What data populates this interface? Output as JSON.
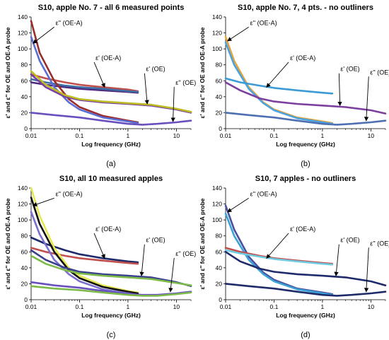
{
  "figure": {
    "shared": {
      "ylabel": "ε' and ε'' for OE and OE-A probe",
      "xlabel": "Log frequency (GHz)",
      "xticks": [
        "0.01",
        "0.1",
        "1",
        "10"
      ],
      "yticks": [
        "0",
        "20",
        "40",
        "60",
        "80",
        "100",
        "120",
        "140"
      ]
    }
  },
  "chart_data": [
    {
      "type": "line",
      "panel": "a",
      "caption": "(a)",
      "title": "S10, apple No. 7 - all 6 measured points",
      "xlabel": "Log frequency (GHz)",
      "ylabel": "ε' and ε'' for OE and OE-A probe",
      "xscale": "log",
      "xlim": [
        0.01,
        20
      ],
      "ylim": [
        0,
        140
      ],
      "grid": false,
      "annotations": [
        {
          "text": "ε'' (OE-A)",
          "x": 0.03,
          "y": 130,
          "target_x": 0.011,
          "target_y": 107
        },
        {
          "text": "ε' (OE-A)",
          "x": 0.2,
          "y": 86,
          "target_x": 0.33,
          "target_y": 52
        },
        {
          "text": "ε' (OE)",
          "x": 2.2,
          "y": 72,
          "target_x": 2.5,
          "target_y": 31
        },
        {
          "text": "ε'' (OE)",
          "x": 9.0,
          "y": 55,
          "target_x": 8.5,
          "target_y": 9
        }
      ],
      "series": [
        {
          "color": "#4f2a7e",
          "x": [
            0.01,
            0.02,
            0.05,
            0.1,
            0.3,
            1,
            1.6
          ],
          "y": [
            58,
            55,
            52,
            50,
            48,
            46,
            45
          ]
        },
        {
          "color": "#c0504d",
          "x": [
            0.01,
            0.02,
            0.05,
            0.1,
            0.3,
            1,
            1.6
          ],
          "y": [
            68,
            63,
            58,
            55,
            52,
            49,
            47
          ]
        },
        {
          "color": "#3a6ea5",
          "x": [
            0.01,
            0.02,
            0.05,
            0.1,
            0.3,
            1,
            1.6
          ],
          "y": [
            62,
            58,
            54,
            52,
            50,
            47,
            46
          ]
        },
        {
          "color": "#9b2c2c",
          "x": [
            0.01,
            0.015,
            0.03,
            0.06,
            0.1,
            0.3,
            1,
            1.6
          ],
          "y": [
            135,
            95,
            60,
            37,
            27,
            16,
            10,
            8
          ]
        },
        {
          "color": "#5a6fd6",
          "x": [
            0.01,
            0.015,
            0.03,
            0.06,
            0.1,
            0.3,
            1,
            1.6
          ],
          "y": [
            115,
            85,
            52,
            33,
            24,
            14,
            9,
            7
          ]
        },
        {
          "color": "#7b3fa0",
          "x": [
            0.01,
            0.02,
            0.05,
            0.1,
            0.3,
            1,
            3,
            10,
            20
          ],
          "y": [
            68,
            52,
            40,
            36,
            33,
            31,
            29,
            24,
            20
          ]
        },
        {
          "color": "#bcbd22",
          "x": [
            0.01,
            0.02,
            0.05,
            0.1,
            0.3,
            1,
            3,
            10,
            20
          ],
          "y": [
            72,
            55,
            42,
            37,
            34,
            32,
            30,
            25,
            21
          ]
        },
        {
          "color": "#6a4fbf",
          "x": [
            0.01,
            0.03,
            0.1,
            0.3,
            1,
            2,
            4,
            10,
            20
          ],
          "y": [
            20,
            17,
            14,
            10,
            6,
            5,
            6,
            8,
            10
          ]
        }
      ]
    },
    {
      "type": "line",
      "panel": "b",
      "caption": "(b)",
      "title": "S10, apple No. 7, 4 pts. - no outliners",
      "xlabel": "Log frequency (GHz)",
      "ylabel": "ε' and ε'' for OE and OE-A probe",
      "xscale": "log",
      "xlim": [
        0.01,
        20
      ],
      "ylim": [
        0,
        140
      ],
      "grid": false,
      "annotations": [
        {
          "text": "ε'' (OE-A)",
          "x": 0.03,
          "y": 130,
          "target_x": 0.011,
          "target_y": 110
        },
        {
          "text": "ε' (OE-A)",
          "x": 0.2,
          "y": 86,
          "target_x": 0.07,
          "target_y": 52
        },
        {
          "text": "ε' (OE)",
          "x": 2.2,
          "y": 72,
          "target_x": 2.3,
          "target_y": 29
        },
        {
          "text": "ε'' (OE)",
          "x": 9.0,
          "y": 68,
          "target_x": 8.0,
          "target_y": 10
        }
      ],
      "series": [
        {
          "color": "#e8a33a",
          "x": [
            0.01,
            0.015,
            0.03,
            0.06,
            0.1,
            0.3,
            1,
            1.6
          ],
          "y": [
            115,
            85,
            52,
            33,
            24,
            14,
            9,
            7
          ]
        },
        {
          "color": "#4aa3df",
          "x": [
            0.01,
            0.015,
            0.03,
            0.06,
            0.1,
            0.3,
            1,
            1.6
          ],
          "y": [
            108,
            80,
            50,
            32,
            23,
            13,
            8,
            6
          ]
        },
        {
          "color": "#3a9bd6",
          "x": [
            0.01,
            0.02,
            0.05,
            0.1,
            0.3,
            1,
            1.6
          ],
          "y": [
            63,
            58,
            54,
            51,
            48,
            45,
            44
          ]
        },
        {
          "color": "#7b3fa0",
          "x": [
            0.01,
            0.02,
            0.05,
            0.1,
            0.3,
            1,
            3,
            10,
            20
          ],
          "y": [
            58,
            48,
            38,
            34,
            31,
            29,
            27,
            23,
            19
          ]
        },
        {
          "color": "#4f6fb3",
          "x": [
            0.01,
            0.03,
            0.1,
            0.3,
            1,
            2,
            4,
            10,
            20
          ],
          "y": [
            20,
            17,
            14,
            10,
            6,
            5,
            6,
            8,
            10
          ]
        }
      ]
    },
    {
      "type": "line",
      "panel": "c",
      "caption": "(c)",
      "title": "S10, all 10 measured apples",
      "xlabel": "Log frequency (GHz)",
      "ylabel": "ε' and ε'' for OE and OE-A probe",
      "xscale": "log",
      "xlim": [
        0.01,
        20
      ],
      "ylim": [
        0,
        140
      ],
      "grid": false,
      "annotations": [
        {
          "text": "ε'' (OE-A)",
          "x": 0.03,
          "y": 130,
          "target_x": 0.011,
          "target_y": 118
        },
        {
          "text": "ε' (OE-A)",
          "x": 0.2,
          "y": 86,
          "target_x": 0.33,
          "target_y": 52
        },
        {
          "text": "ε' (OE)",
          "x": 2.2,
          "y": 72,
          "target_x": 1.9,
          "target_y": 30
        },
        {
          "text": "ε'' (OE)",
          "x": 9.0,
          "y": 55,
          "target_x": 7.5,
          "target_y": 10
        }
      ],
      "series": [
        {
          "color": "#1f2a6b",
          "x": [
            0.01,
            0.02,
            0.05,
            0.1,
            0.3,
            1,
            1.6
          ],
          "y": [
            78,
            70,
            62,
            57,
            52,
            48,
            47
          ]
        },
        {
          "color": "#c0504d",
          "x": [
            0.01,
            0.02,
            0.05,
            0.1,
            0.3,
            1,
            1.6
          ],
          "y": [
            65,
            60,
            55,
            52,
            49,
            46,
            45
          ]
        },
        {
          "color": "#e6e84f",
          "x": [
            0.01,
            0.015,
            0.03,
            0.06,
            0.1,
            0.3,
            1,
            1.6
          ],
          "y": [
            140,
            105,
            65,
            40,
            30,
            18,
            11,
            9
          ]
        },
        {
          "color": "#111111",
          "x": [
            0.01,
            0.015,
            0.03,
            0.06,
            0.1,
            0.3,
            1,
            1.6
          ],
          "y": [
            128,
            95,
            60,
            37,
            27,
            16,
            10,
            8
          ]
        },
        {
          "color": "#7b6fd0",
          "x": [
            0.01,
            0.015,
            0.03,
            0.06,
            0.1,
            0.3,
            1,
            1.6
          ],
          "y": [
            110,
            82,
            50,
            32,
            23,
            13,
            8,
            6
          ]
        },
        {
          "color": "#3a3f8f",
          "x": [
            0.01,
            0.02,
            0.05,
            0.1,
            0.3,
            1,
            3,
            10,
            20
          ],
          "y": [
            62,
            50,
            40,
            35,
            32,
            30,
            28,
            22,
            17
          ]
        },
        {
          "color": "#7cba4a",
          "x": [
            0.01,
            0.02,
            0.05,
            0.1,
            0.3,
            1,
            3,
            10,
            20
          ],
          "y": [
            55,
            45,
            37,
            33,
            30,
            28,
            26,
            21,
            18
          ]
        },
        {
          "color": "#6a4fbf",
          "x": [
            0.01,
            0.03,
            0.1,
            0.3,
            1,
            2,
            4,
            10,
            20
          ],
          "y": [
            22,
            18,
            15,
            11,
            7,
            6,
            6,
            8,
            10
          ]
        },
        {
          "color": "#7cba4a",
          "x": [
            0.01,
            0.03,
            0.1,
            0.3,
            1,
            2,
            4,
            10,
            20
          ],
          "y": [
            17,
            14,
            12,
            9,
            6,
            5,
            5,
            7,
            9
          ]
        }
      ]
    },
    {
      "type": "line",
      "panel": "d",
      "caption": "(d)",
      "title": "S10, 7 apples - no outliners",
      "xlabel": "Log frequency (GHz)",
      "ylabel": "ε' and ε'' for OE and OE-A probe",
      "xscale": "log",
      "xlim": [
        0.01,
        20
      ],
      "ylim": [
        0,
        140
      ],
      "grid": false,
      "annotations": [
        {
          "text": "ε'' (OE-A)",
          "x": 0.03,
          "y": 130,
          "target_x": 0.011,
          "target_y": 110
        },
        {
          "text": "ε' (OE-A)",
          "x": 0.2,
          "y": 86,
          "target_x": 0.07,
          "target_y": 52
        },
        {
          "text": "ε' (OE)",
          "x": 2.2,
          "y": 72,
          "target_x": 1.9,
          "target_y": 30
        },
        {
          "text": "ε'' (OE)",
          "x": 9.0,
          "y": 68,
          "target_x": 8.0,
          "target_y": 10
        }
      ],
      "series": [
        {
          "color": "#4a4f9f",
          "x": [
            0.01,
            0.015,
            0.03,
            0.06,
            0.1,
            0.3,
            1,
            1.6
          ],
          "y": [
            118,
            88,
            54,
            34,
            25,
            14,
            9,
            7
          ]
        },
        {
          "color": "#3aa3d6",
          "x": [
            0.01,
            0.015,
            0.03,
            0.06,
            0.1,
            0.3,
            1,
            1.6
          ],
          "y": [
            108,
            80,
            50,
            32,
            23,
            13,
            8,
            6
          ]
        },
        {
          "color": "#c0504d",
          "x": [
            0.01,
            0.02,
            0.05,
            0.1,
            0.3,
            1,
            1.6
          ],
          "y": [
            65,
            60,
            55,
            52,
            49,
            46,
            45
          ]
        },
        {
          "color": "#6fcbe0",
          "x": [
            0.01,
            0.02,
            0.05,
            0.1,
            0.3,
            1,
            1.6
          ],
          "y": [
            62,
            58,
            54,
            51,
            48,
            45,
            44
          ]
        },
        {
          "color": "#1f2a6b",
          "x": [
            0.01,
            0.02,
            0.05,
            0.1,
            0.3,
            1,
            3,
            10,
            20
          ],
          "y": [
            60,
            48,
            39,
            35,
            32,
            30,
            28,
            23,
            18
          ]
        },
        {
          "color": "#1f2a6b",
          "x": [
            0.01,
            0.03,
            0.1,
            0.3,
            1,
            2,
            4,
            10,
            20
          ],
          "y": [
            20,
            17,
            14,
            10,
            6,
            5,
            6,
            8,
            10
          ]
        }
      ]
    }
  ]
}
